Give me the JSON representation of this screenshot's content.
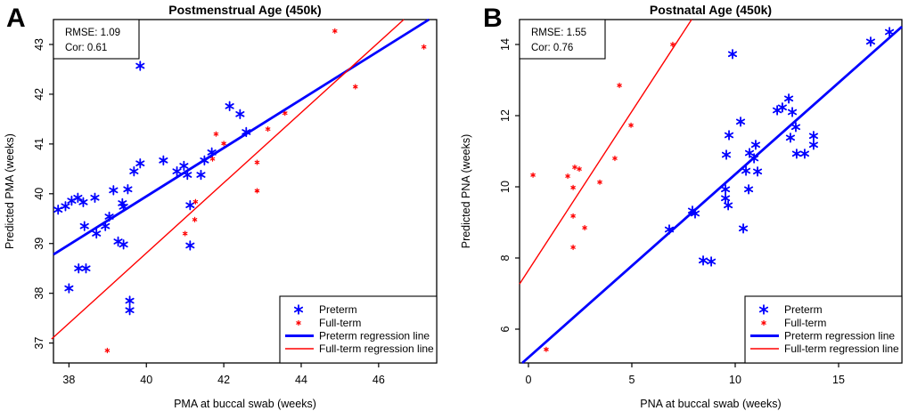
{
  "colors": {
    "preterm": "#0000ff",
    "fullterm": "#ff0000",
    "axis": "#000000",
    "background": "#ffffff"
  },
  "panel_letters": {
    "a": "A",
    "b": "B"
  },
  "chart_data": [
    {
      "type": "scatter",
      "panel_label": "A",
      "title": "Postmenstrual Age (450k)",
      "xlabel": "PMA at buccal swab (weeks)",
      "ylabel": "Predicted PMA (weeks)",
      "annotation_lines": [
        "RMSE: 1.09",
        "Cor: 0.61"
      ],
      "xlim": [
        37.6,
        47.5
      ],
      "ylim": [
        36.6,
        43.5
      ],
      "xticks": [
        38,
        40,
        42,
        44,
        46
      ],
      "yticks": [
        37,
        38,
        39,
        40,
        41,
        42,
        43
      ],
      "grid": false,
      "legend_position": "bottom-right",
      "series": [
        {
          "name": "Preterm",
          "marker": "asterisk",
          "size": "large",
          "color": "#0000ff",
          "points": [
            [
              37.72,
              39.68
            ],
            [
              37.91,
              39.75
            ],
            [
              38.07,
              39.86
            ],
            [
              38.23,
              39.92
            ],
            [
              38.37,
              39.83
            ],
            [
              38.67,
              39.92
            ],
            [
              39.15,
              40.07
            ],
            [
              39.52,
              40.09
            ],
            [
              39.68,
              40.45
            ],
            [
              39.84,
              40.61
            ],
            [
              40.44,
              40.67
            ],
            [
              40.79,
              40.45
            ],
            [
              40.97,
              40.56
            ],
            [
              41.06,
              40.38
            ],
            [
              41.41,
              40.38
            ],
            [
              41.5,
              40.67
            ],
            [
              41.69,
              40.83
            ],
            [
              39.38,
              39.81
            ],
            [
              39.41,
              39.74
            ],
            [
              39.04,
              39.54
            ],
            [
              38.94,
              39.35
            ],
            [
              38.4,
              39.35
            ],
            [
              38.71,
              39.2
            ],
            [
              39.27,
              39.04
            ],
            [
              39.41,
              38.98
            ],
            [
              38.25,
              38.5
            ],
            [
              38.44,
              38.5
            ],
            [
              38.0,
              38.1
            ],
            [
              39.57,
              37.85
            ],
            [
              39.57,
              37.66
            ],
            [
              41.13,
              39.77
            ],
            [
              41.13,
              38.96
            ],
            [
              39.84,
              42.57
            ],
            [
              42.15,
              41.76
            ],
            [
              42.42,
              41.6
            ],
            [
              42.58,
              41.24
            ]
          ]
        },
        {
          "name": "Full-term",
          "marker": "asterisk",
          "size": "small",
          "color": "#ff0000",
          "points": [
            [
              41.8,
              41.2
            ],
            [
              42.0,
              41.01
            ],
            [
              41.71,
              40.7
            ],
            [
              43.14,
              41.3
            ],
            [
              43.58,
              41.62
            ],
            [
              44.87,
              43.27
            ],
            [
              45.4,
              42.15
            ],
            [
              47.17,
              42.95
            ],
            [
              42.86,
              40.63
            ],
            [
              42.86,
              40.06
            ],
            [
              41.27,
              39.84
            ],
            [
              41.25,
              39.48
            ],
            [
              41.0,
              39.2
            ],
            [
              38.99,
              36.85
            ]
          ]
        }
      ],
      "regression_lines": [
        {
          "name": "Preterm regression line",
          "color": "#0000ff",
          "weight": "thick",
          "x1": 37.6,
          "y1": 38.78,
          "x2": 47.3,
          "y2": 43.5
        },
        {
          "name": "Full-term regression line",
          "color": "#ff0000",
          "weight": "thin",
          "x1": 37.55,
          "y1": 37.08,
          "x2": 46.65,
          "y2": 43.5
        }
      ],
      "legend": [
        {
          "label": "Preterm",
          "type": "marker",
          "ref": 0
        },
        {
          "label": "Full-term",
          "type": "marker",
          "ref": 1
        },
        {
          "label": "Preterm regression line",
          "type": "line",
          "ref": 0
        },
        {
          "label": "Full-term regression line",
          "type": "line",
          "ref": 1
        }
      ]
    },
    {
      "type": "scatter",
      "panel_label": "B",
      "title": "Postnatal Age (450k)",
      "xlabel": "PNA at buccal swab (weeks)",
      "ylabel": "Predicted PNA (weeks)",
      "annotation_lines": [
        "RMSE: 1.55",
        "Cor: 0.76"
      ],
      "xlim": [
        -0.43,
        18.06
      ],
      "ylim": [
        5.05,
        14.7
      ],
      "xticks": [
        0,
        5,
        10,
        15
      ],
      "yticks": [
        6,
        8,
        10,
        12,
        14
      ],
      "grid": false,
      "legend_position": "bottom-right",
      "series": [
        {
          "name": "Preterm",
          "marker": "asterisk",
          "size": "large",
          "color": "#0000ff",
          "points": [
            [
              9.87,
              13.73
            ],
            [
              16.55,
              14.08
            ],
            [
              17.46,
              14.35
            ],
            [
              12.59,
              12.48
            ],
            [
              12.28,
              12.23
            ],
            [
              12.76,
              12.1
            ],
            [
              12.03,
              12.15
            ],
            [
              10.26,
              11.83
            ],
            [
              9.7,
              11.45
            ],
            [
              10.99,
              11.18
            ],
            [
              12.93,
              11.68
            ],
            [
              12.67,
              11.38
            ],
            [
              13.79,
              11.43
            ],
            [
              13.79,
              11.18
            ],
            [
              12.97,
              10.93
            ],
            [
              13.36,
              10.93
            ],
            [
              9.57,
              10.9
            ],
            [
              10.69,
              10.95
            ],
            [
              10.91,
              10.8
            ],
            [
              10.52,
              10.45
            ],
            [
              11.08,
              10.43
            ],
            [
              10.65,
              9.93
            ],
            [
              9.53,
              9.93
            ],
            [
              9.53,
              9.68
            ],
            [
              9.66,
              9.48
            ],
            [
              7.93,
              9.33
            ],
            [
              8.06,
              9.25
            ],
            [
              10.39,
              8.83
            ],
            [
              8.45,
              7.93
            ],
            [
              8.84,
              7.9
            ],
            [
              6.81,
              8.8
            ]
          ]
        },
        {
          "name": "Full-term",
          "marker": "asterisk",
          "size": "small",
          "color": "#ff0000",
          "points": [
            [
              0.22,
              10.33
            ],
            [
              1.9,
              10.3
            ],
            [
              2.24,
              10.55
            ],
            [
              2.46,
              10.5
            ],
            [
              2.16,
              9.98
            ],
            [
              3.45,
              10.13
            ],
            [
              4.18,
              10.8
            ],
            [
              4.96,
              11.73
            ],
            [
              4.4,
              12.85
            ],
            [
              6.98,
              14.0
            ],
            [
              2.16,
              9.18
            ],
            [
              2.72,
              8.85
            ],
            [
              2.16,
              8.3
            ],
            [
              0.86,
              5.43
            ]
          ]
        }
      ],
      "regression_lines": [
        {
          "name": "Preterm regression line",
          "color": "#0000ff",
          "weight": "thick",
          "x1": -0.3,
          "y1": 5.05,
          "x2": 18.06,
          "y2": 14.5
        },
        {
          "name": "Full-term regression line",
          "color": "#ff0000",
          "weight": "thin",
          "x1": -0.43,
          "y1": 7.27,
          "x2": 7.89,
          "y2": 14.7
        }
      ],
      "legend": [
        {
          "label": "Preterm",
          "type": "marker",
          "ref": 0
        },
        {
          "label": "Full-term",
          "type": "marker",
          "ref": 1
        },
        {
          "label": "Preterm regression line",
          "type": "line",
          "ref": 0
        },
        {
          "label": "Full-term regression line",
          "type": "line",
          "ref": 1
        }
      ]
    }
  ]
}
